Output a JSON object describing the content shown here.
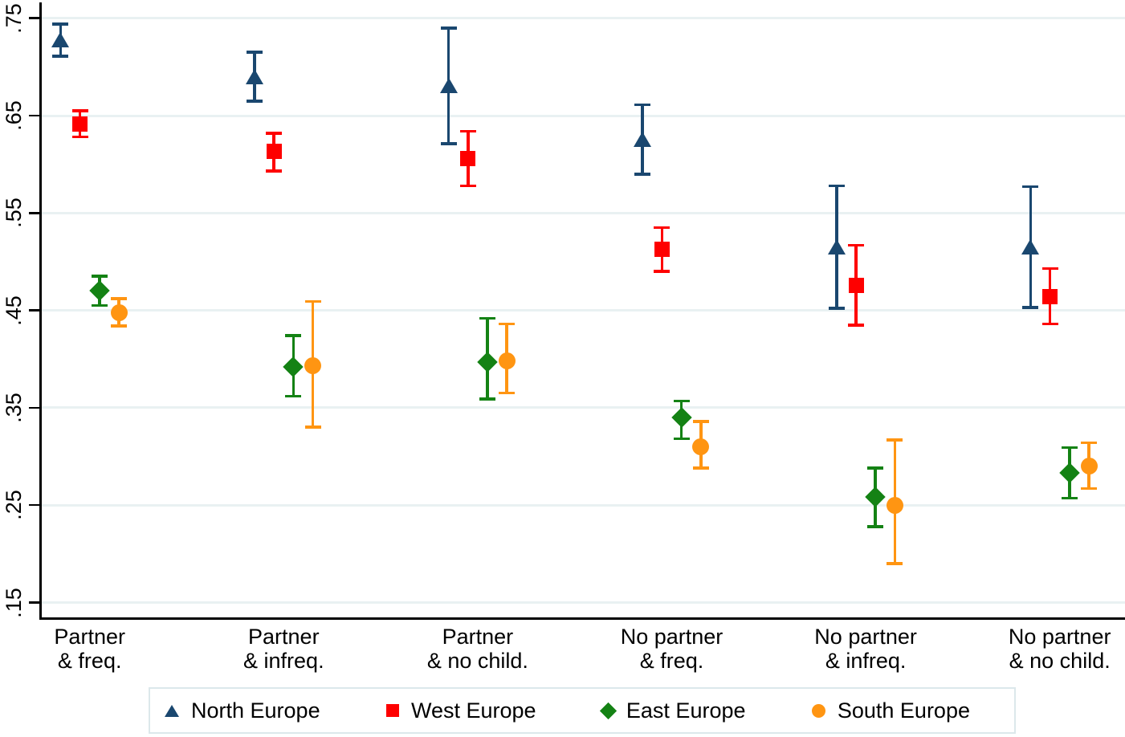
{
  "chart_data": {
    "type": "scatter",
    "subtype": "point-estimates-with-95-percent-CIs",
    "title": "",
    "xlabel": "",
    "ylabel": "",
    "grid": true,
    "legend_position": "bottom",
    "background_color": "#ffffff",
    "gridline_color": "#e9f1f2",
    "axis_color": "#000000",
    "ylim": [
      0.134,
      0.769
    ],
    "yticks": [
      0.75,
      0.65,
      0.55,
      0.45,
      0.35,
      0.25,
      0.15
    ],
    "ytick_labels": [
      ".75",
      ".65",
      ".55",
      ".45",
      ".35",
      ".25",
      ".15"
    ],
    "categories": [
      "Partner\n& freq.",
      "Partner\n& infreq.",
      "Partner\n& no child.",
      "No partner\n& freq.",
      "No partner\n& infreq.",
      "No partner\n& no child."
    ],
    "series": [
      {
        "name": "North Europe",
        "marker": "triangle",
        "color": "#1a476f",
        "values": [
          0.728,
          0.69,
          0.681,
          0.626,
          0.515,
          0.515
        ],
        "ci_low": [
          0.711,
          0.665,
          0.621,
          0.59,
          0.452,
          0.453
        ],
        "ci_high": [
          0.744,
          0.715,
          0.74,
          0.661,
          0.578,
          0.577
        ]
      },
      {
        "name": "West Europe",
        "marker": "square",
        "color": "#fe0000",
        "values": [
          0.641,
          0.613,
          0.606,
          0.513,
          0.476,
          0.464
        ],
        "ci_low": [
          0.628,
          0.593,
          0.578,
          0.49,
          0.435,
          0.436
        ],
        "ci_high": [
          0.655,
          0.632,
          0.634,
          0.535,
          0.517,
          0.493
        ]
      },
      {
        "name": "East Europe",
        "marker": "diamond",
        "color": "#148214",
        "values": [
          0.47,
          0.392,
          0.397,
          0.34,
          0.258,
          0.283
        ],
        "ci_low": [
          0.455,
          0.362,
          0.359,
          0.318,
          0.228,
          0.257
        ],
        "ci_high": [
          0.485,
          0.424,
          0.442,
          0.357,
          0.288,
          0.309
        ]
      },
      {
        "name": "South Europe",
        "marker": "circle",
        "color": "#ff9512",
        "values": [
          0.448,
          0.393,
          0.398,
          0.31,
          0.25,
          0.29
        ],
        "ci_low": [
          0.434,
          0.33,
          0.365,
          0.288,
          0.19,
          0.267
        ],
        "ci_high": [
          0.462,
          0.459,
          0.436,
          0.336,
          0.317,
          0.314
        ]
      }
    ]
  }
}
